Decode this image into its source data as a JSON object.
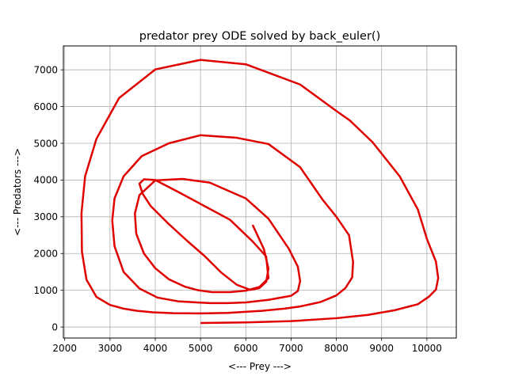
{
  "chart_data": {
    "type": "line",
    "title": "predator prey ODE solved by back_euler()",
    "xlabel": "<--- Prey --->",
    "ylabel": "<--- Predators --->",
    "xlim": [
      1970,
      10650
    ],
    "ylim": [
      -300,
      7650
    ],
    "xticks": [
      2000,
      3000,
      4000,
      5000,
      6000,
      7000,
      8000,
      9000,
      10000
    ],
    "yticks": [
      0,
      1000,
      2000,
      3000,
      4000,
      5000,
      6000,
      7000
    ],
    "xtick_labels": [
      "2000",
      "3000",
      "4000",
      "5000",
      "6000",
      "7000",
      "8000",
      "9000",
      "10000"
    ],
    "ytick_labels": [
      "0",
      "1000",
      "2000",
      "3000",
      "4000",
      "5000",
      "6000",
      "7000"
    ],
    "grid": true,
    "legend": "none",
    "series": [
      {
        "color": "#e00000",
        "x": [
          5000,
          6000,
          7000,
          8000,
          8700,
          9300,
          9800,
          10050,
          10200,
          10250,
          10200,
          10000,
          9800,
          9400,
          8800,
          8300,
          8000,
          7200,
          6000,
          5000,
          4000,
          3200,
          2700,
          2450,
          2370,
          2380,
          2480,
          2700,
          3000,
          3300,
          3600,
          3950,
          4400,
          4950,
          5600,
          6350,
          6850,
          7200,
          7650,
          8000,
          8200,
          8350,
          8370,
          8280,
          8000,
          7700,
          7200,
          6500,
          5800,
          5000,
          4300,
          3700,
          3300,
          3100,
          3050,
          3100,
          3300,
          3650,
          4050,
          4500,
          5200,
          5600,
          6000,
          6500,
          7000,
          7150,
          7200,
          7150,
          6950,
          6500,
          6000,
          5200,
          4600,
          4000,
          3650,
          3550,
          3580,
          3750,
          4000,
          4300,
          4650,
          4950,
          5250,
          5650,
          6000,
          6300,
          6500,
          6450,
          6150,
          5650,
          5000,
          4500,
          4000,
          3750,
          3650,
          3720,
          3900,
          4300,
          4700,
          5100,
          5450,
          5800,
          6100,
          6300,
          6450,
          6500,
          6400,
          6150
        ],
        "y": [
          110,
          125,
          160,
          240,
          330,
          460,
          620,
          830,
          1020,
          1330,
          1780,
          2400,
          3200,
          4100,
          5030,
          5620,
          5880,
          6600,
          7150,
          7270,
          7010,
          6230,
          5120,
          4100,
          3100,
          2050,
          1290,
          820,
          600,
          500,
          440,
          400,
          375,
          370,
          385,
          440,
          500,
          560,
          680,
          860,
          1060,
          1350,
          1770,
          2500,
          3000,
          3460,
          4350,
          4980,
          5150,
          5220,
          5000,
          4650,
          4100,
          3500,
          2900,
          2200,
          1500,
          1050,
          800,
          700,
          650,
          650,
          670,
          740,
          850,
          980,
          1250,
          1640,
          2130,
          2950,
          3500,
          3930,
          4030,
          3990,
          3590,
          3090,
          2540,
          2000,
          1600,
          1300,
          1100,
          1000,
          950,
          950,
          990,
          1090,
          1330,
          1920,
          2330,
          2920,
          3350,
          3680,
          4000,
          4020,
          3900,
          3630,
          3290,
          2800,
          2350,
          1920,
          1490,
          1150,
          1010,
          1060,
          1230,
          1590,
          2120,
          2780
        ]
      }
    ]
  }
}
